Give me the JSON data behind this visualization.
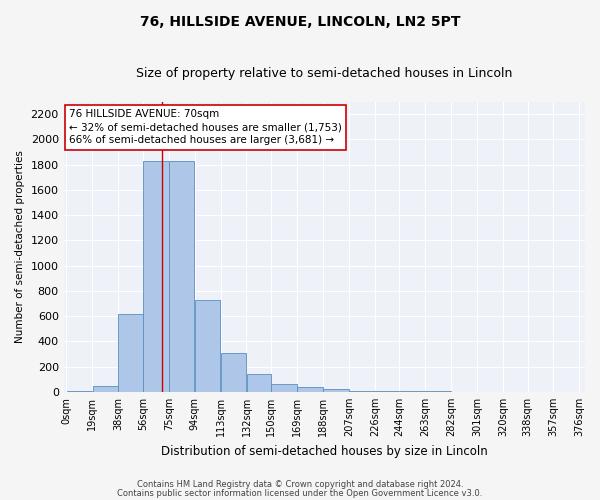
{
  "title": "76, HILLSIDE AVENUE, LINCOLN, LN2 5PT",
  "subtitle": "Size of property relative to semi-detached houses in Lincoln",
  "xlabel": "Distribution of semi-detached houses by size in Lincoln",
  "ylabel": "Number of semi-detached properties",
  "footnote1": "Contains HM Land Registry data © Crown copyright and database right 2024.",
  "footnote2": "Contains public sector information licensed under the Open Government Licence v3.0.",
  "property_size": 70,
  "property_label": "76 HILLSIDE AVENUE: 70sqm",
  "pct_smaller": 32,
  "n_smaller": 1753,
  "pct_larger": 66,
  "n_larger": 3681,
  "bin_edges": [
    0,
    19,
    38,
    56,
    75,
    94,
    113,
    132,
    150,
    169,
    188,
    207,
    226,
    244,
    263,
    282,
    301,
    320,
    338,
    357,
    376
  ],
  "bar_heights": [
    5,
    50,
    620,
    1830,
    1830,
    730,
    310,
    140,
    60,
    40,
    20,
    10,
    5,
    5,
    5,
    2,
    2,
    1,
    1,
    1
  ],
  "bar_color": "#aec6e8",
  "bar_edge_color": "#5a8fc0",
  "red_line_x": 70,
  "annotation_box_edge": "#cc0000",
  "ylim": [
    0,
    2300
  ],
  "yticks": [
    0,
    200,
    400,
    600,
    800,
    1000,
    1200,
    1400,
    1600,
    1800,
    2000,
    2200
  ],
  "background_color": "#eef2f8",
  "grid_color": "#ffffff",
  "title_fontsize": 10,
  "subtitle_fontsize": 9,
  "tick_label_fontsize": 7,
  "ylabel_fontsize": 7.5,
  "xlabel_fontsize": 8.5,
  "footnote_fontsize": 6,
  "annot_fontsize": 7.5
}
